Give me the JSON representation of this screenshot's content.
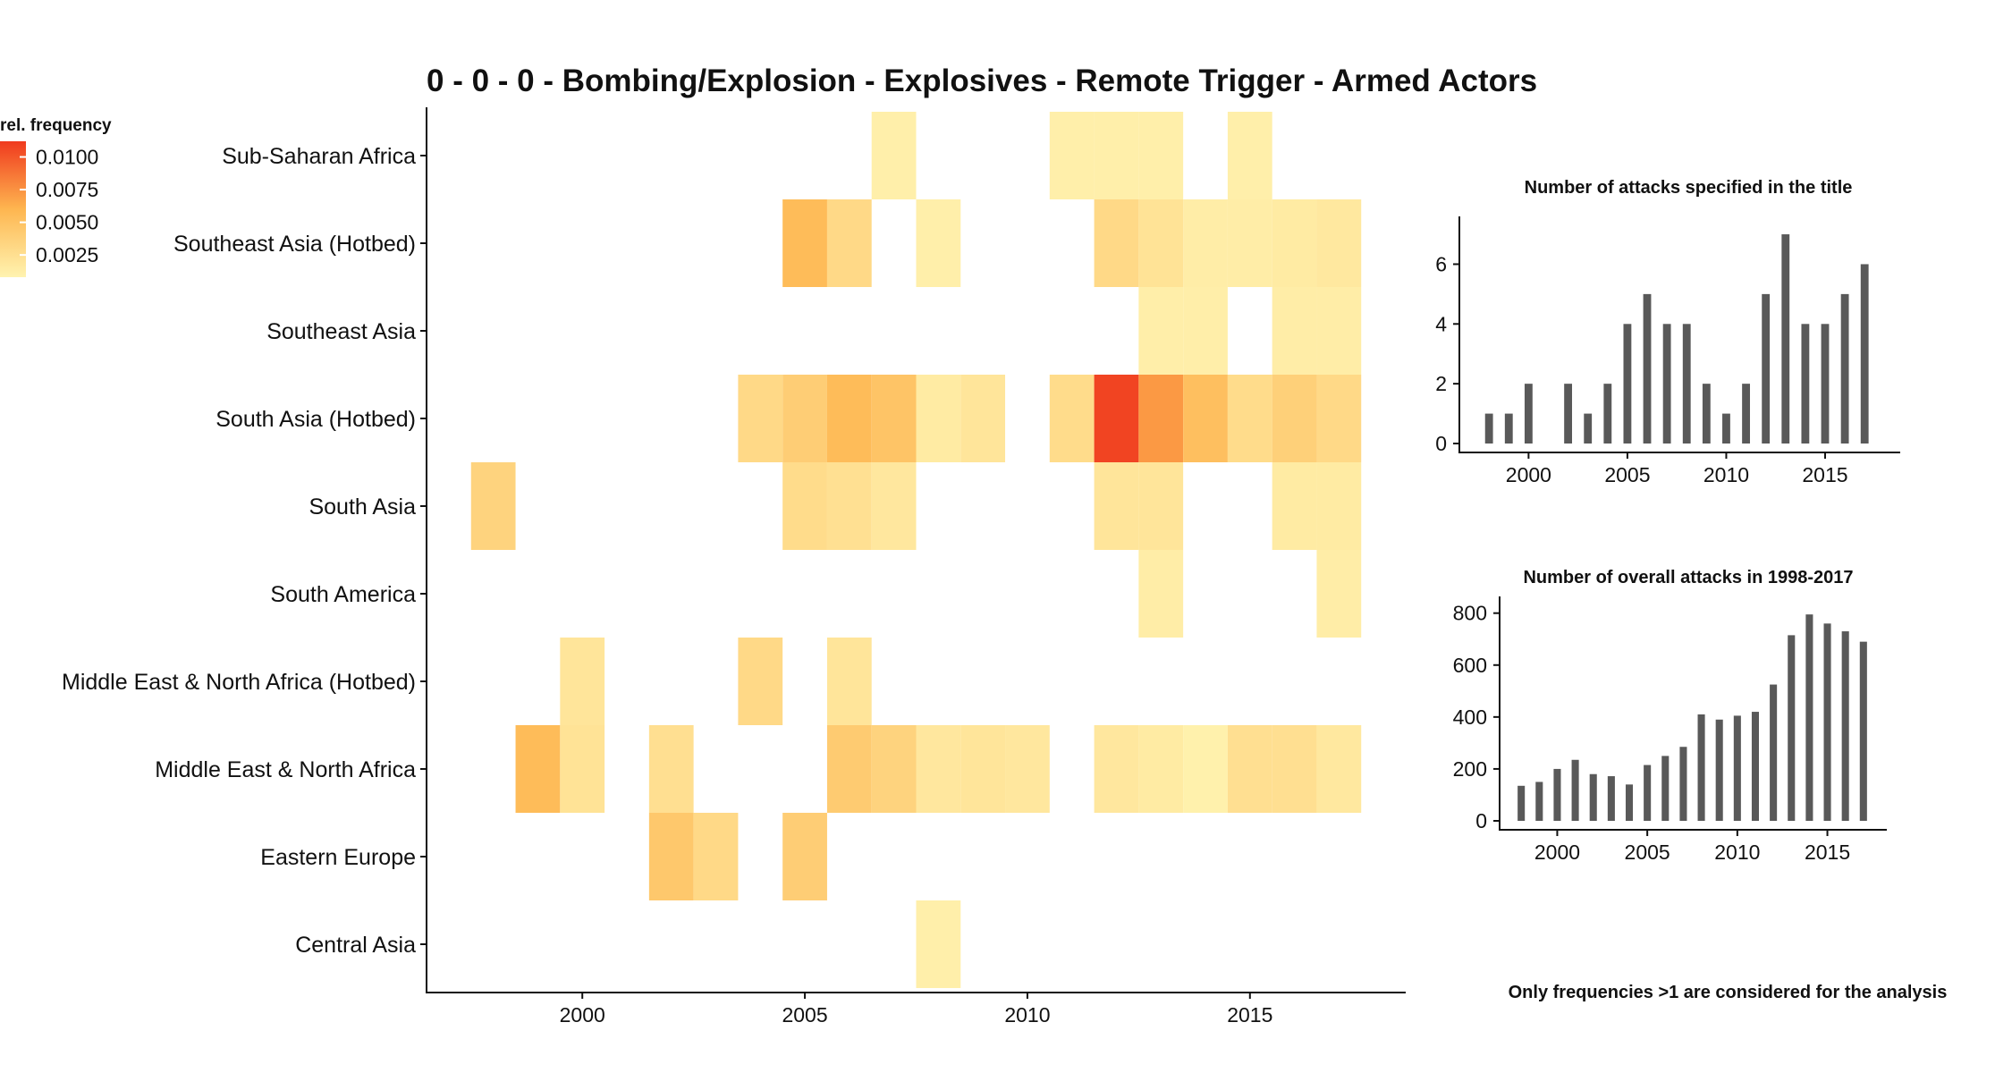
{
  "chart_data": [
    {
      "type": "heatmap",
      "title": "0 - 0 - 0 - Bombing/Explosion - Explosives - Remote Trigger - Armed Actors",
      "x_ticks": [
        2000,
        2005,
        2010,
        2015
      ],
      "xlim": [
        1996.5,
        2018.5
      ],
      "rows": [
        "Sub-Saharan Africa",
        "Southeast Asia (Hotbed)",
        "Southeast Asia",
        "South Asia (Hotbed)",
        "South Asia",
        "South America",
        "Middle East & North Africa (Hotbed)",
        "Middle East & North Africa",
        "Eastern Europe",
        "Central Asia"
      ],
      "cells": [
        {
          "row": "Sub-Saharan Africa",
          "year": 2007,
          "value": 0.0011
        },
        {
          "row": "Sub-Saharan Africa",
          "year": 2011,
          "value": 0.0011
        },
        {
          "row": "Sub-Saharan Africa",
          "year": 2012,
          "value": 0.0011
        },
        {
          "row": "Sub-Saharan Africa",
          "year": 2013,
          "value": 0.0011
        },
        {
          "row": "Sub-Saharan Africa",
          "year": 2015,
          "value": 0.0011
        },
        {
          "row": "Southeast Asia (Hotbed)",
          "year": 2005,
          "value": 0.0055
        },
        {
          "row": "Southeast Asia (Hotbed)",
          "year": 2006,
          "value": 0.003
        },
        {
          "row": "Southeast Asia (Hotbed)",
          "year": 2008,
          "value": 0.0011
        },
        {
          "row": "Southeast Asia (Hotbed)",
          "year": 2012,
          "value": 0.003
        },
        {
          "row": "Southeast Asia (Hotbed)",
          "year": 2013,
          "value": 0.0022
        },
        {
          "row": "Southeast Asia (Hotbed)",
          "year": 2014,
          "value": 0.0013
        },
        {
          "row": "Southeast Asia (Hotbed)",
          "year": 2015,
          "value": 0.0013
        },
        {
          "row": "Southeast Asia (Hotbed)",
          "year": 2016,
          "value": 0.0015
        },
        {
          "row": "Southeast Asia (Hotbed)",
          "year": 2017,
          "value": 0.0017
        },
        {
          "row": "Southeast Asia",
          "year": 2013,
          "value": 0.0012
        },
        {
          "row": "Southeast Asia",
          "year": 2014,
          "value": 0.0012
        },
        {
          "row": "Southeast Asia",
          "year": 2016,
          "value": 0.0013
        },
        {
          "row": "Southeast Asia",
          "year": 2017,
          "value": 0.0013
        },
        {
          "row": "South Asia (Hotbed)",
          "year": 2004,
          "value": 0.003
        },
        {
          "row": "South Asia (Hotbed)",
          "year": 2005,
          "value": 0.004
        },
        {
          "row": "South Asia (Hotbed)",
          "year": 2006,
          "value": 0.0055
        },
        {
          "row": "South Asia (Hotbed)",
          "year": 2007,
          "value": 0.0048
        },
        {
          "row": "South Asia (Hotbed)",
          "year": 2008,
          "value": 0.0015
        },
        {
          "row": "South Asia (Hotbed)",
          "year": 2009,
          "value": 0.002
        },
        {
          "row": "South Asia (Hotbed)",
          "year": 2011,
          "value": 0.0028
        },
        {
          "row": "South Asia (Hotbed)",
          "year": 2012,
          "value": 0.0108
        },
        {
          "row": "South Asia (Hotbed)",
          "year": 2013,
          "value": 0.0072
        },
        {
          "row": "South Asia (Hotbed)",
          "year": 2014,
          "value": 0.0052
        },
        {
          "row": "South Asia (Hotbed)",
          "year": 2015,
          "value": 0.0028
        },
        {
          "row": "South Asia (Hotbed)",
          "year": 2016,
          "value": 0.0038
        },
        {
          "row": "South Asia (Hotbed)",
          "year": 2017,
          "value": 0.003
        },
        {
          "row": "South Asia",
          "year": 1998,
          "value": 0.0035
        },
        {
          "row": "South Asia",
          "year": 2005,
          "value": 0.0028
        },
        {
          "row": "South Asia",
          "year": 2006,
          "value": 0.0024
        },
        {
          "row": "South Asia",
          "year": 2007,
          "value": 0.0018
        },
        {
          "row": "South Asia",
          "year": 2012,
          "value": 0.002
        },
        {
          "row": "South Asia",
          "year": 2013,
          "value": 0.002
        },
        {
          "row": "South Asia",
          "year": 2016,
          "value": 0.0015
        },
        {
          "row": "South Asia",
          "year": 2017,
          "value": 0.0015
        },
        {
          "row": "South America",
          "year": 2013,
          "value": 0.0013
        },
        {
          "row": "South America",
          "year": 2017,
          "value": 0.0013
        },
        {
          "row": "Middle East & North Africa (Hotbed)",
          "year": 2000,
          "value": 0.002
        },
        {
          "row": "Middle East & North Africa (Hotbed)",
          "year": 2004,
          "value": 0.003
        },
        {
          "row": "Middle East & North Africa (Hotbed)",
          "year": 2006,
          "value": 0.002
        },
        {
          "row": "Middle East & North Africa",
          "year": 1999,
          "value": 0.0055
        },
        {
          "row": "Middle East & North Africa",
          "year": 2000,
          "value": 0.0022
        },
        {
          "row": "Middle East & North Africa",
          "year": 2002,
          "value": 0.0025
        },
        {
          "row": "Middle East & North Africa",
          "year": 2006,
          "value": 0.0042
        },
        {
          "row": "Middle East & North Africa",
          "year": 2007,
          "value": 0.0035
        },
        {
          "row": "Middle East & North Africa",
          "year": 2008,
          "value": 0.0018
        },
        {
          "row": "Middle East & North Africa",
          "year": 2009,
          "value": 0.002
        },
        {
          "row": "Middle East & North Africa",
          "year": 2010,
          "value": 0.0018
        },
        {
          "row": "Middle East & North Africa",
          "year": 2012,
          "value": 0.0018
        },
        {
          "row": "Middle East & North Africa",
          "year": 2013,
          "value": 0.0015
        },
        {
          "row": "Middle East & North Africa",
          "year": 2014,
          "value": 0.001
        },
        {
          "row": "Middle East & North Africa",
          "year": 2015,
          "value": 0.0025
        },
        {
          "row": "Middle East & North Africa",
          "year": 2016,
          "value": 0.0025
        },
        {
          "row": "Middle East & North Africa",
          "year": 2017,
          "value": 0.0017
        },
        {
          "row": "Eastern Europe",
          "year": 2002,
          "value": 0.0045
        },
        {
          "row": "Eastern Europe",
          "year": 2003,
          "value": 0.003
        },
        {
          "row": "Eastern Europe",
          "year": 2005,
          "value": 0.004
        },
        {
          "row": "Central Asia",
          "year": 2008,
          "value": 0.0011
        }
      ],
      "legend": {
        "title": "rel. frequency",
        "ticks": [
          0.0025,
          0.005,
          0.0075,
          0.01
        ],
        "tick_labels": [
          "0.0025",
          "0.0050",
          "0.0075",
          "0.0100"
        ],
        "range": [
          0.0008,
          0.0112
        ],
        "low_color": "#fff3b0",
        "high_color": "#f03a1e"
      }
    },
    {
      "type": "bar",
      "title": "Number of attacks specified in the title",
      "x": [
        1998,
        1999,
        2000,
        2001,
        2002,
        2003,
        2004,
        2005,
        2006,
        2007,
        2008,
        2009,
        2010,
        2011,
        2012,
        2013,
        2014,
        2015,
        2016,
        2017
      ],
      "values": [
        1,
        1,
        2,
        0,
        2,
        1,
        2,
        4,
        5,
        4,
        4,
        2,
        1,
        2,
        5,
        7,
        4,
        4,
        5,
        6
      ],
      "x_ticks": [
        2000,
        2005,
        2010,
        2015
      ],
      "y_ticks": [
        0,
        2,
        4,
        6
      ],
      "ylim": [
        0,
        7.3
      ],
      "bar_color": "#595959"
    },
    {
      "type": "bar",
      "title": "Number of overall attacks in 1998-2017",
      "x": [
        1998,
        1999,
        2000,
        2001,
        2002,
        2003,
        2004,
        2005,
        2006,
        2007,
        2008,
        2009,
        2010,
        2011,
        2012,
        2013,
        2014,
        2015,
        2016,
        2017
      ],
      "values": [
        135,
        150,
        200,
        235,
        180,
        172,
        140,
        215,
        250,
        285,
        410,
        390,
        405,
        420,
        525,
        715,
        795,
        760,
        730,
        690
      ],
      "x_ticks": [
        2000,
        2005,
        2010,
        2015
      ],
      "y_ticks": [
        0,
        200,
        400,
        600,
        800
      ],
      "ylim": [
        0,
        830
      ],
      "bar_color": "#595959"
    }
  ],
  "footnote": "Only frequencies >1 are considered for the analysis"
}
